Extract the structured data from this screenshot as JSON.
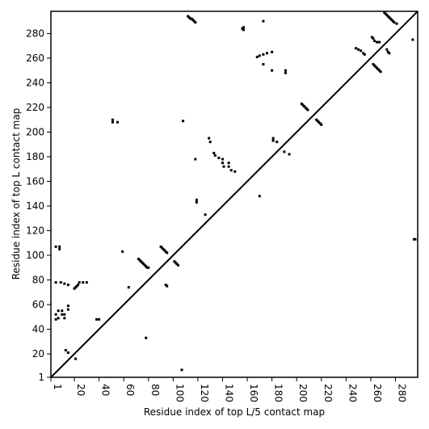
{
  "chart_data": {
    "type": "scatter",
    "xlabel": "Residue index of top L/5 contact map",
    "ylabel": "Residue index of top L contact map",
    "xlim": [
      1,
      298
    ],
    "ylim": [
      1,
      298
    ],
    "xticks": [
      1,
      20,
      40,
      60,
      80,
      100,
      120,
      140,
      160,
      180,
      200,
      220,
      240,
      260,
      280
    ],
    "yticks": [
      1,
      20,
      40,
      60,
      80,
      100,
      120,
      140,
      160,
      180,
      200,
      220,
      240,
      260,
      280
    ],
    "diagonal": true,
    "series": [
      {
        "color": "#000000",
        "x": [
          112,
          113,
          114,
          115,
          116,
          117,
          118,
          156,
          157,
          157,
          173,
          168,
          170,
          173,
          176,
          180,
          173,
          180,
          191,
          191,
          51,
          51,
          55,
          108,
          129,
          130,
          133,
          134,
          137,
          140,
          140,
          141,
          145,
          145,
          147,
          150,
          118,
          126,
          119,
          119,
          59,
          64,
          78,
          107,
          170,
          5,
          8,
          8,
          5,
          9,
          12,
          15,
          5,
          5,
          7,
          7,
          10,
          10,
          12,
          12,
          15,
          15,
          38,
          40,
          13,
          15,
          21,
          20,
          21,
          22,
          23,
          24,
          27,
          30,
          72,
          73,
          74,
          75,
          76,
          77,
          78,
          79,
          80,
          90,
          91,
          92,
          93,
          94,
          95,
          94,
          95,
          101,
          102,
          103,
          104,
          204,
          205,
          206,
          207,
          208,
          209,
          216,
          217,
          218,
          219,
          220,
          181,
          184,
          181,
          190,
          194,
          248,
          250,
          252,
          254,
          255,
          261,
          262,
          263,
          265,
          267,
          271,
          272,
          273,
          274,
          275,
          276,
          277,
          278,
          279,
          281,
          262,
          263,
          264,
          265,
          266,
          267,
          268,
          273,
          274,
          275,
          294,
          295,
          296
        ],
        "y": [
          294,
          293,
          292,
          292,
          291,
          290,
          289,
          284,
          283,
          285,
          290,
          261,
          262,
          263,
          264,
          265,
          255,
          250,
          250,
          248,
          210,
          208,
          208,
          209,
          195,
          192,
          183,
          181,
          179,
          178,
          175,
          172,
          175,
          172,
          169,
          168,
          178,
          133,
          145,
          143,
          103,
          74,
          33,
          7,
          148,
          107,
          107,
          105,
          78,
          78,
          77,
          76,
          52,
          48,
          49,
          55,
          55,
          52,
          52,
          49,
          56,
          59,
          48,
          48,
          23,
          21,
          16,
          73,
          74,
          75,
          76,
          78,
          78,
          78,
          97,
          96,
          95,
          94,
          93,
          92,
          91,
          90,
          90,
          107,
          106,
          105,
          104,
          103,
          102,
          76,
          75,
          95,
          94,
          93,
          92,
          223,
          222,
          221,
          220,
          219,
          218,
          210,
          209,
          208,
          207,
          206,
          195,
          192,
          193,
          184,
          182,
          268,
          267,
          266,
          264,
          263,
          277,
          276,
          274,
          273,
          273,
          297,
          296,
          295,
          294,
          293,
          292,
          291,
          290,
          289,
          288,
          255,
          254,
          253,
          252,
          251,
          250,
          249,
          267,
          265,
          264,
          275,
          113,
          113
        ]
      }
    ]
  }
}
